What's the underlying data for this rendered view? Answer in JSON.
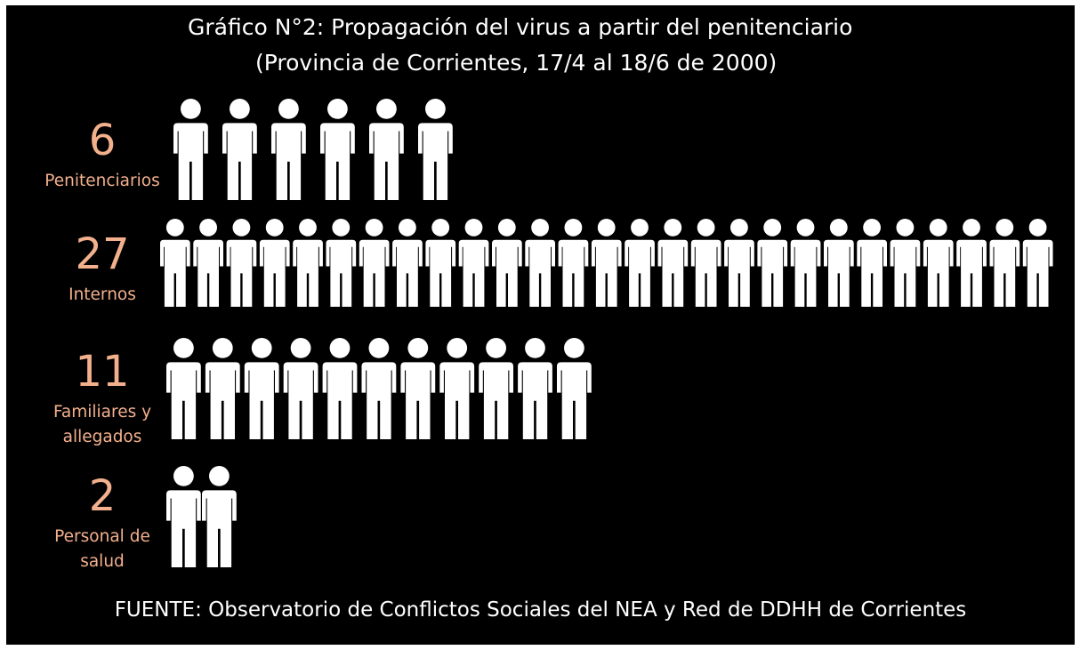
{
  "chart_data": {
    "type": "pictograph",
    "title": "Gráfico N°2: Propagación del virus a partir del penitenciario",
    "subtitle": "(Provincia de Corrientes, 17/4 al 18/6 de 2000)",
    "categories": [
      "Penitenciarios",
      "Internos",
      "Familiares y allegados",
      "Personal de salud"
    ],
    "values": [
      6,
      27,
      11,
      2
    ],
    "category_lines": [
      [
        "Penitenciarios"
      ],
      [
        "Internos"
      ],
      [
        "Familiares y",
        "allegados"
      ],
      [
        "Personal de",
        "salud"
      ]
    ],
    "value_labels": [
      "6",
      "27",
      "11",
      "2"
    ],
    "units_per_icon": 1,
    "icon": "person-icon",
    "source": "FUENTE: Observatorio de Conflictos Sociales del NEA y Red de DDHH de Corrientes"
  },
  "colors": {
    "background": "#000000",
    "icon": "#ffffff",
    "accent": "#f3b08d",
    "text": "#ffffff"
  }
}
